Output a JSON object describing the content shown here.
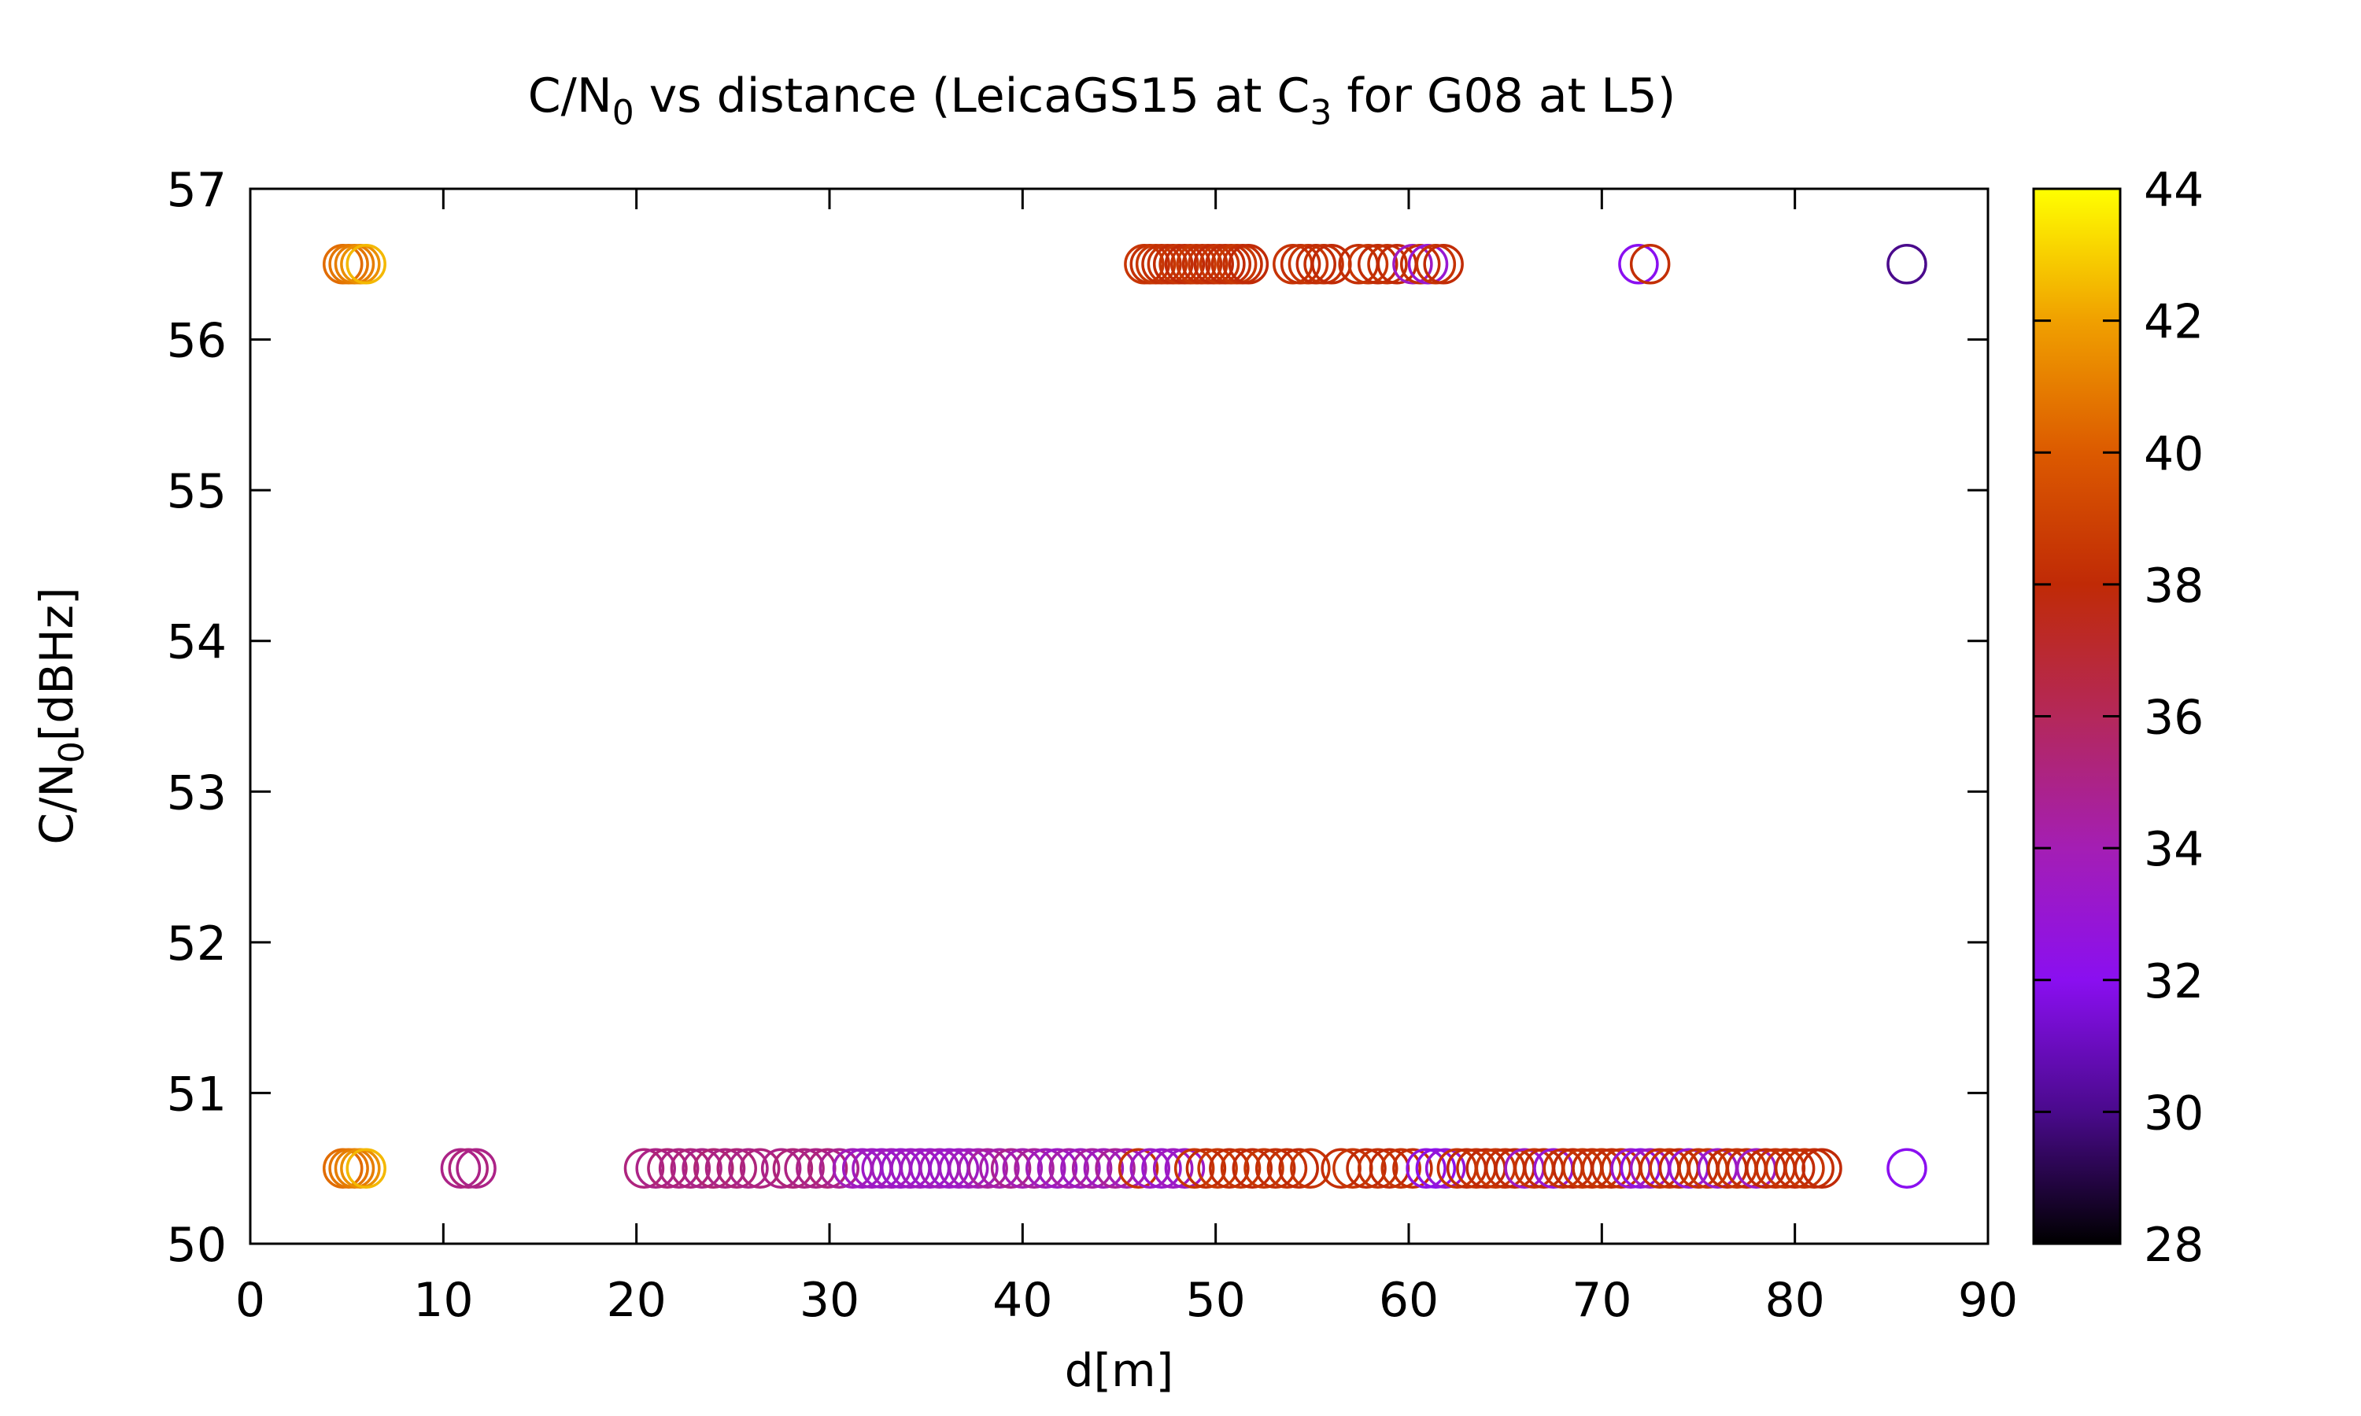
{
  "chart_data": {
    "type": "scatter",
    "title": {
      "pre": "C/N",
      "sub": "0",
      "mid": " vs distance (LeicaGS15 at C",
      "sub2": "3",
      "post": " for G08 at L5)"
    },
    "xlabel": "d[m]",
    "ylabel": {
      "pre": "C/N",
      "sub": "0",
      "post": "[dBHz]"
    },
    "xlim": [
      0,
      90
    ],
    "ylim": [
      50,
      57
    ],
    "x_ticks": [
      "0",
      "10",
      "20",
      "30",
      "40",
      "50",
      "60",
      "70",
      "80",
      "90"
    ],
    "y_ticks": [
      "50",
      "51",
      "52",
      "53",
      "54",
      "55",
      "56",
      "57"
    ],
    "colorbar": {
      "range": [
        28,
        44
      ],
      "ticks": [
        "28",
        "30",
        "32",
        "34",
        "36",
        "38",
        "40",
        "42",
        "44"
      ],
      "palette": "black-purple-red-orange-yellow"
    },
    "marker": "open-circle",
    "grid": false,
    "series": [
      {
        "values": [
          {
            "x": 4.8,
            "y": 56.5,
            "c": 40.5
          },
          {
            "x": 5.1,
            "y": 56.5,
            "c": 40.8
          },
          {
            "x": 5.4,
            "y": 56.5,
            "c": 41.0
          },
          {
            "x": 5.7,
            "y": 56.5,
            "c": 41.5
          },
          {
            "x": 6.0,
            "y": 56.5,
            "c": 42.5
          },
          {
            "x": 46.3,
            "y": 56.5,
            "c": 38.5
          },
          {
            "x": 46.6,
            "y": 56.5,
            "c": 38.3
          },
          {
            "x": 46.9,
            "y": 56.5,
            "c": 38.6
          },
          {
            "x": 47.2,
            "y": 56.5,
            "c": 38.2
          },
          {
            "x": 47.5,
            "y": 56.5,
            "c": 38.4
          },
          {
            "x": 47.8,
            "y": 56.5,
            "c": 38.1
          },
          {
            "x": 48.1,
            "y": 56.5,
            "c": 38.5
          },
          {
            "x": 48.4,
            "y": 56.5,
            "c": 38.0
          },
          {
            "x": 48.7,
            "y": 56.5,
            "c": 38.3
          },
          {
            "x": 49.0,
            "y": 56.5,
            "c": 38.6
          },
          {
            "x": 49.3,
            "y": 56.5,
            "c": 38.2
          },
          {
            "x": 49.6,
            "y": 56.5,
            "c": 38.4
          },
          {
            "x": 49.9,
            "y": 56.5,
            "c": 38.0
          },
          {
            "x": 50.2,
            "y": 56.5,
            "c": 38.5
          },
          {
            "x": 50.5,
            "y": 56.5,
            "c": 38.1
          },
          {
            "x": 50.8,
            "y": 56.5,
            "c": 38.3
          },
          {
            "x": 51.1,
            "y": 56.5,
            "c": 38.6
          },
          {
            "x": 51.4,
            "y": 56.5,
            "c": 38.2
          },
          {
            "x": 51.7,
            "y": 56.5,
            "c": 38.0
          },
          {
            "x": 54.0,
            "y": 56.5,
            "c": 38.4
          },
          {
            "x": 54.4,
            "y": 56.5,
            "c": 38.2
          },
          {
            "x": 54.8,
            "y": 56.5,
            "c": 38.5
          },
          {
            "x": 55.2,
            "y": 56.5,
            "c": 38.1
          },
          {
            "x": 55.6,
            "y": 56.5,
            "c": 38.3
          },
          {
            "x": 56.0,
            "y": 56.5,
            "c": 38.0
          },
          {
            "x": 57.4,
            "y": 56.5,
            "c": 38.2
          },
          {
            "x": 57.9,
            "y": 56.5,
            "c": 38.5
          },
          {
            "x": 58.4,
            "y": 56.5,
            "c": 38.1
          },
          {
            "x": 58.9,
            "y": 56.5,
            "c": 38.3
          },
          {
            "x": 59.4,
            "y": 56.5,
            "c": 38.0
          },
          {
            "x": 60.2,
            "y": 56.5,
            "c": 33.5
          },
          {
            "x": 60.6,
            "y": 56.5,
            "c": 38.2
          },
          {
            "x": 61.0,
            "y": 56.5,
            "c": 33.0
          },
          {
            "x": 61.4,
            "y": 56.5,
            "c": 38.4
          },
          {
            "x": 61.8,
            "y": 56.5,
            "c": 38.1
          },
          {
            "x": 71.9,
            "y": 56.5,
            "c": 32.0
          },
          {
            "x": 72.5,
            "y": 56.5,
            "c": 38.2
          },
          {
            "x": 85.8,
            "y": 56.5,
            "c": 30.0
          },
          {
            "x": 4.8,
            "y": 50.5,
            "c": 40.5
          },
          {
            "x": 5.1,
            "y": 50.5,
            "c": 40.8
          },
          {
            "x": 5.4,
            "y": 50.5,
            "c": 41.0
          },
          {
            "x": 5.7,
            "y": 50.5,
            "c": 41.5
          },
          {
            "x": 6.0,
            "y": 50.5,
            "c": 42.5
          },
          {
            "x": 10.9,
            "y": 50.5,
            "c": 35.0
          },
          {
            "x": 11.3,
            "y": 50.5,
            "c": 35.2
          },
          {
            "x": 11.7,
            "y": 50.5,
            "c": 35.0
          },
          {
            "x": 20.4,
            "y": 50.5,
            "c": 35.2
          },
          {
            "x": 21.0,
            "y": 50.5,
            "c": 35.0
          },
          {
            "x": 21.6,
            "y": 50.5,
            "c": 35.3
          },
          {
            "x": 22.2,
            "y": 50.5,
            "c": 35.1
          },
          {
            "x": 22.8,
            "y": 50.5,
            "c": 35.2
          },
          {
            "x": 23.4,
            "y": 50.5,
            "c": 35.0
          },
          {
            "x": 24.0,
            "y": 50.5,
            "c": 35.4
          },
          {
            "x": 24.6,
            "y": 50.5,
            "c": 35.1
          },
          {
            "x": 25.2,
            "y": 50.5,
            "c": 35.3
          },
          {
            "x": 25.8,
            "y": 50.5,
            "c": 35.0
          },
          {
            "x": 26.4,
            "y": 50.5,
            "c": 35.2
          },
          {
            "x": 27.5,
            "y": 50.5,
            "c": 35.0
          },
          {
            "x": 28.1,
            "y": 50.5,
            "c": 35.3
          },
          {
            "x": 28.7,
            "y": 50.5,
            "c": 35.1
          },
          {
            "x": 29.3,
            "y": 50.5,
            "c": 35.0
          },
          {
            "x": 29.9,
            "y": 50.5,
            "c": 35.2
          },
          {
            "x": 30.5,
            "y": 50.5,
            "c": 34.8
          },
          {
            "x": 31.2,
            "y": 50.5,
            "c": 33.8
          },
          {
            "x": 31.7,
            "y": 50.5,
            "c": 33.5
          },
          {
            "x": 32.2,
            "y": 50.5,
            "c": 33.6
          },
          {
            "x": 32.7,
            "y": 50.5,
            "c": 33.4
          },
          {
            "x": 33.2,
            "y": 50.5,
            "c": 33.7
          },
          {
            "x": 33.7,
            "y": 50.5,
            "c": 33.3
          },
          {
            "x": 34.2,
            "y": 50.5,
            "c": 33.5
          },
          {
            "x": 34.7,
            "y": 50.5,
            "c": 33.6
          },
          {
            "x": 35.2,
            "y": 50.5,
            "c": 33.4
          },
          {
            "x": 35.7,
            "y": 50.5,
            "c": 33.8
          },
          {
            "x": 36.2,
            "y": 50.5,
            "c": 33.3
          },
          {
            "x": 36.7,
            "y": 50.5,
            "c": 33.5
          },
          {
            "x": 37.2,
            "y": 50.5,
            "c": 33.6
          },
          {
            "x": 37.7,
            "y": 50.5,
            "c": 34.0
          },
          {
            "x": 38.2,
            "y": 50.5,
            "c": 34.5
          },
          {
            "x": 38.8,
            "y": 50.5,
            "c": 34.2
          },
          {
            "x": 39.4,
            "y": 50.5,
            "c": 34.8
          },
          {
            "x": 40.0,
            "y": 50.5,
            "c": 34.0
          },
          {
            "x": 40.6,
            "y": 50.5,
            "c": 34.5
          },
          {
            "x": 41.2,
            "y": 50.5,
            "c": 33.8
          },
          {
            "x": 41.8,
            "y": 50.5,
            "c": 33.5
          },
          {
            "x": 42.4,
            "y": 50.5,
            "c": 34.2
          },
          {
            "x": 43.0,
            "y": 50.5,
            "c": 33.6
          },
          {
            "x": 43.6,
            "y": 50.5,
            "c": 34.4
          },
          {
            "x": 44.2,
            "y": 50.5,
            "c": 33.8
          },
          {
            "x": 44.8,
            "y": 50.5,
            "c": 34.6
          },
          {
            "x": 45.4,
            "y": 50.5,
            "c": 34.0
          },
          {
            "x": 46.0,
            "y": 50.5,
            "c": 38.4
          },
          {
            "x": 46.6,
            "y": 50.5,
            "c": 33.5
          },
          {
            "x": 47.2,
            "y": 50.5,
            "c": 33.2
          },
          {
            "x": 47.8,
            "y": 50.5,
            "c": 33.6
          },
          {
            "x": 48.4,
            "y": 50.5,
            "c": 33.4
          },
          {
            "x": 48.9,
            "y": 50.5,
            "c": 38.5
          },
          {
            "x": 49.5,
            "y": 50.5,
            "c": 38.2
          },
          {
            "x": 50.1,
            "y": 50.5,
            "c": 38.6
          },
          {
            "x": 50.7,
            "y": 50.5,
            "c": 38.1
          },
          {
            "x": 51.3,
            "y": 50.5,
            "c": 38.4
          },
          {
            "x": 51.9,
            "y": 50.5,
            "c": 38.0
          },
          {
            "x": 52.5,
            "y": 50.5,
            "c": 38.5
          },
          {
            "x": 53.1,
            "y": 50.5,
            "c": 38.2
          },
          {
            "x": 53.7,
            "y": 50.5,
            "c": 38.3
          },
          {
            "x": 54.3,
            "y": 50.5,
            "c": 38.0
          },
          {
            "x": 54.9,
            "y": 50.5,
            "c": 38.4
          },
          {
            "x": 56.5,
            "y": 50.5,
            "c": 38.2
          },
          {
            "x": 57.1,
            "y": 50.5,
            "c": 38.5
          },
          {
            "x": 57.8,
            "y": 50.5,
            "c": 38.1
          },
          {
            "x": 58.4,
            "y": 50.5,
            "c": 38.3
          },
          {
            "x": 59.0,
            "y": 50.5,
            "c": 38.0
          },
          {
            "x": 59.6,
            "y": 50.5,
            "c": 38.4
          },
          {
            "x": 60.2,
            "y": 50.5,
            "c": 38.2
          },
          {
            "x": 60.9,
            "y": 50.5,
            "c": 32.5
          },
          {
            "x": 61.4,
            "y": 50.5,
            "c": 32.2
          },
          {
            "x": 61.9,
            "y": 50.5,
            "c": 32.8
          },
          {
            "x": 62.5,
            "y": 50.5,
            "c": 38.4
          },
          {
            "x": 63.0,
            "y": 50.5,
            "c": 38.1
          },
          {
            "x": 63.5,
            "y": 50.5,
            "c": 38.3
          },
          {
            "x": 64.0,
            "y": 50.5,
            "c": 38.0
          },
          {
            "x": 64.5,
            "y": 50.5,
            "c": 38.5
          },
          {
            "x": 65.0,
            "y": 50.5,
            "c": 38.2
          },
          {
            "x": 65.5,
            "y": 50.5,
            "c": 38.0
          },
          {
            "x": 66.0,
            "y": 50.5,
            "c": 33.5
          },
          {
            "x": 66.5,
            "y": 50.5,
            "c": 38.4
          },
          {
            "x": 67.0,
            "y": 50.5,
            "c": 38.1
          },
          {
            "x": 67.5,
            "y": 50.5,
            "c": 33.0
          },
          {
            "x": 68.0,
            "y": 50.5,
            "c": 38.3
          },
          {
            "x": 68.5,
            "y": 50.5,
            "c": 38.0
          },
          {
            "x": 69.0,
            "y": 50.5,
            "c": 38.5
          },
          {
            "x": 69.5,
            "y": 50.5,
            "c": 38.2
          },
          {
            "x": 70.0,
            "y": 50.5,
            "c": 38.4
          },
          {
            "x": 70.5,
            "y": 50.5,
            "c": 38.1
          },
          {
            "x": 71.0,
            "y": 50.5,
            "c": 38.3
          },
          {
            "x": 71.5,
            "y": 50.5,
            "c": 33.2
          },
          {
            "x": 72.0,
            "y": 50.5,
            "c": 32.5
          },
          {
            "x": 72.5,
            "y": 50.5,
            "c": 33.5
          },
          {
            "x": 73.0,
            "y": 50.5,
            "c": 38.2
          },
          {
            "x": 73.5,
            "y": 50.5,
            "c": 38.4
          },
          {
            "x": 74.0,
            "y": 50.5,
            "c": 38.0
          },
          {
            "x": 74.5,
            "y": 50.5,
            "c": 33.0
          },
          {
            "x": 75.0,
            "y": 50.5,
            "c": 38.3
          },
          {
            "x": 75.5,
            "y": 50.5,
            "c": 38.5
          },
          {
            "x": 76.0,
            "y": 50.5,
            "c": 33.4
          },
          {
            "x": 76.5,
            "y": 50.5,
            "c": 38.1
          },
          {
            "x": 77.0,
            "y": 50.5,
            "c": 38.4
          },
          {
            "x": 77.5,
            "y": 50.5,
            "c": 38.2
          },
          {
            "x": 78.0,
            "y": 50.5,
            "c": 33.6
          },
          {
            "x": 78.5,
            "y": 50.5,
            "c": 38.0
          },
          {
            "x": 79.0,
            "y": 50.5,
            "c": 38.3
          },
          {
            "x": 79.5,
            "y": 50.5,
            "c": 38.5
          },
          {
            "x": 80.0,
            "y": 50.5,
            "c": 38.1
          },
          {
            "x": 80.5,
            "y": 50.5,
            "c": 38.4
          },
          {
            "x": 81.0,
            "y": 50.5,
            "c": 38.2
          },
          {
            "x": 81.4,
            "y": 50.5,
            "c": 38.0
          },
          {
            "x": 85.8,
            "y": 50.5,
            "c": 32.0
          }
        ]
      }
    ]
  }
}
